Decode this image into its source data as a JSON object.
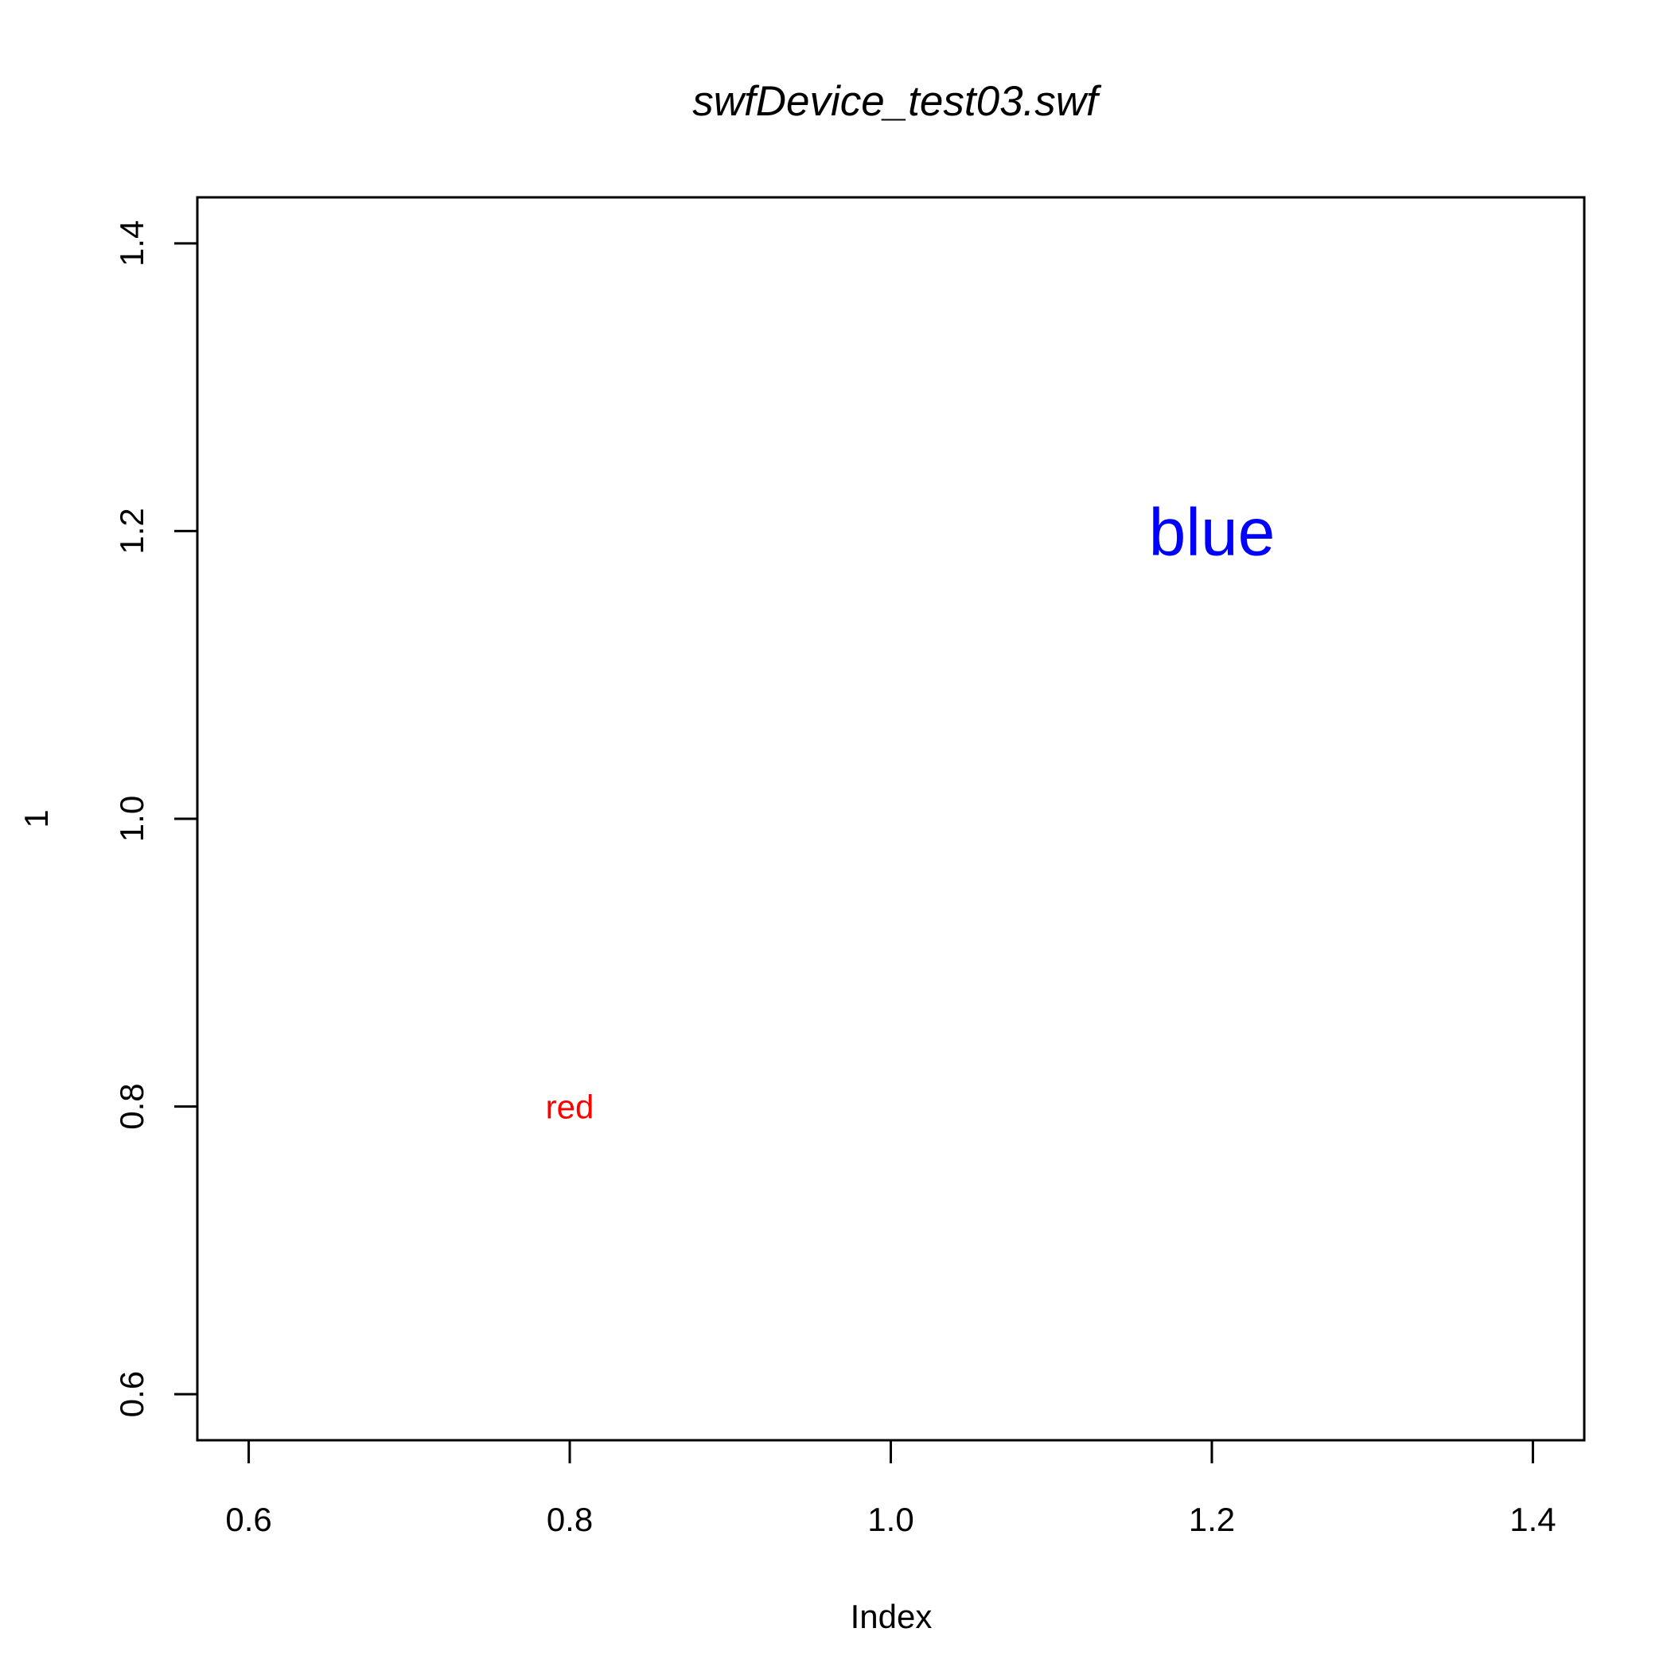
{
  "chart_data": {
    "type": "scatter",
    "title": "swfDevice_test03.swf",
    "xlabel": "Index",
    "ylabel": "1",
    "xlim": [
      0.568,
      1.432
    ],
    "ylim": [
      0.568,
      1.432
    ],
    "x_ticks": [
      0.6,
      0.8,
      1.0,
      1.2,
      1.4
    ],
    "x_tick_labels": [
      "0.6",
      "0.8",
      "1.0",
      "1.2",
      "1.4"
    ],
    "y_ticks": [
      0.6,
      0.8,
      1.0,
      1.2,
      1.4
    ],
    "y_tick_labels": [
      "0.6",
      "0.8",
      "1.0",
      "1.2",
      "1.4"
    ],
    "grid": false,
    "annotations": [
      {
        "text": "red",
        "x": 0.8,
        "y": 0.8,
        "color": "#ff0000",
        "size": "normal"
      },
      {
        "text": "blue",
        "x": 1.2,
        "y": 1.2,
        "color": "#0000ff",
        "size": "large"
      }
    ]
  }
}
